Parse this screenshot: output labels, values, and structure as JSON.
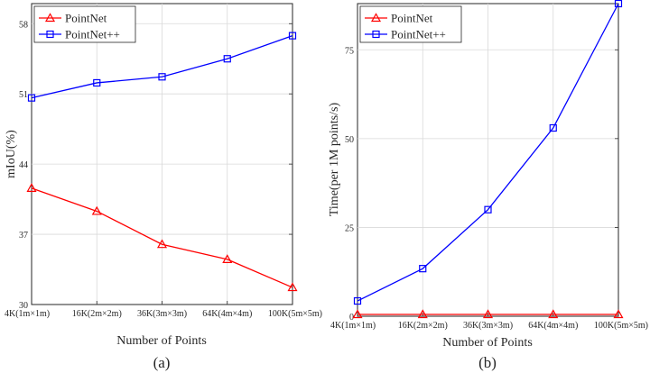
{
  "chart_data": [
    {
      "type": "line",
      "panel_label": "(a)",
      "xlabel": "Number of Points",
      "ylabel": "mIoU(%)",
      "categories": [
        "4K(1m×1m)",
        "16K(2m×2m)",
        "36K(3m×3m)",
        "64K(4m×4m)",
        "100K(5m×5m)"
      ],
      "ylim": [
        30,
        60
      ],
      "yticks": [
        "30",
        "37",
        "44",
        "51",
        "58"
      ],
      "grid": true,
      "legend_position": "top-left",
      "series": [
        {
          "name": "PointNet",
          "color": "#ff0000",
          "marker": "triangle",
          "values": [
            41.6,
            39.3,
            36.0,
            34.5,
            31.7
          ]
        },
        {
          "name": "PointNet++",
          "color": "#0000ff",
          "marker": "square",
          "values": [
            50.6,
            52.1,
            52.7,
            54.5,
            56.8
          ]
        }
      ]
    },
    {
      "type": "line",
      "panel_label": "(b)",
      "xlabel": "Number of Points",
      "ylabel": "Time(per 1M points/s)",
      "categories": [
        "4K(1m×1m)",
        "16K(2m×2m)",
        "36K(3m×3m)",
        "64K(4m×4m)",
        "100K(5m×5m)"
      ],
      "ylim": [
        0,
        88
      ],
      "yticks": [
        "0",
        "25",
        "50",
        "75"
      ],
      "grid": true,
      "legend_position": "top-left",
      "series": [
        {
          "name": "PointNet",
          "color": "#ff0000",
          "marker": "triangle",
          "values": [
            0.5,
            0.5,
            0.5,
            0.5,
            0.5
          ]
        },
        {
          "name": "PointNet++",
          "color": "#0000ff",
          "marker": "square",
          "values": [
            4.3,
            13.4,
            30.0,
            53.0,
            88.0
          ]
        }
      ]
    }
  ]
}
